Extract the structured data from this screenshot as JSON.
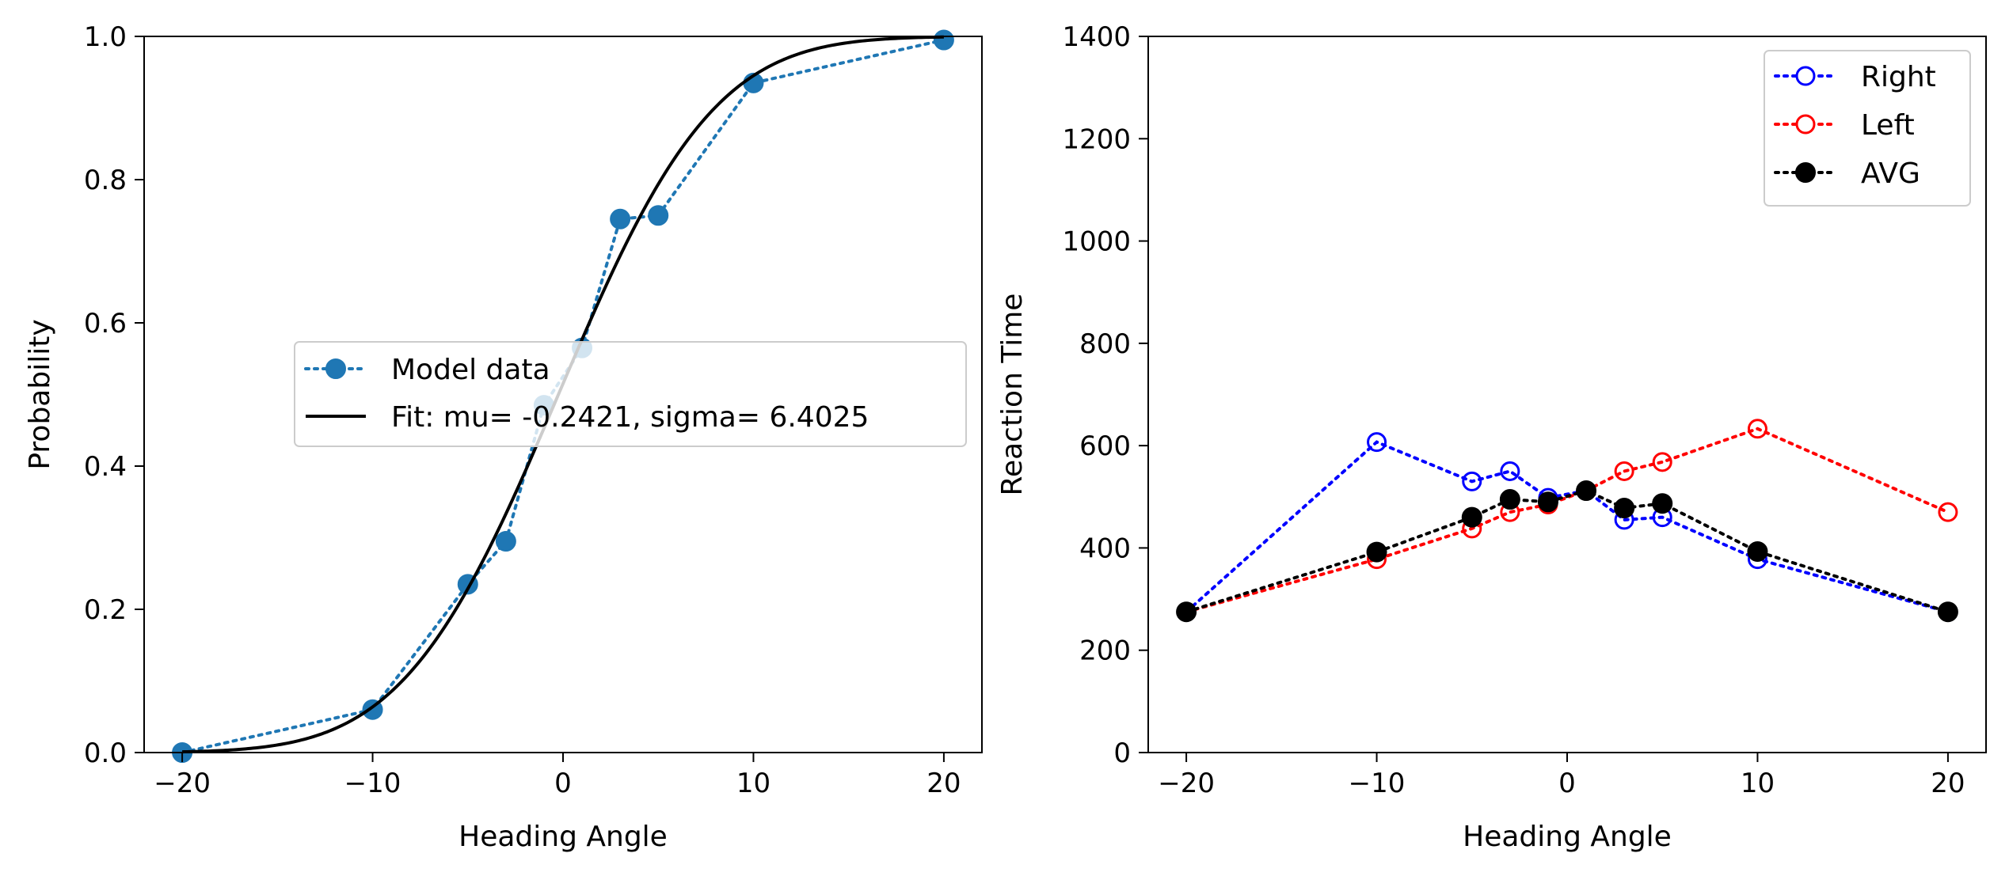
{
  "chart_data": [
    {
      "type": "line",
      "xlabel": "Heading Angle",
      "ylabel": "Probability",
      "xlim": [
        -22,
        22
      ],
      "ylim": [
        0.0,
        1.0
      ],
      "xticks": [
        -20,
        -10,
        0,
        10,
        20
      ],
      "xtick_labels": [
        "−20",
        "−10",
        "0",
        "10",
        "20"
      ],
      "yticks": [
        0.0,
        0.2,
        0.4,
        0.6,
        0.8,
        1.0
      ],
      "ytick_labels": [
        "0.0",
        "0.2",
        "0.4",
        "0.6",
        "0.8",
        "1.0"
      ],
      "grid": false,
      "legend_position": "center-right",
      "series": [
        {
          "name": "Model data",
          "style": "dotted-with-markers",
          "color": "#1f77b4",
          "x": [
            -20,
            -10,
            -5,
            -3,
            -1,
            1,
            3,
            5,
            10,
            20
          ],
          "y": [
            0.0,
            0.06,
            0.235,
            0.295,
            0.485,
            0.565,
            0.745,
            0.75,
            0.935,
            0.995
          ]
        },
        {
          "name": "Fit: mu= -0.2421, sigma= 6.4025",
          "style": "solid",
          "color": "#000000",
          "function": "normal_cdf",
          "mu": -0.2421,
          "sigma": 6.4025
        }
      ]
    },
    {
      "type": "line",
      "xlabel": "Heading Angle",
      "ylabel": "Reaction Time",
      "xlim": [
        -22,
        22
      ],
      "ylim": [
        0,
        1400
      ],
      "xticks": [
        -20,
        -10,
        0,
        10,
        20
      ],
      "xtick_labels": [
        "−20",
        "−10",
        "0",
        "10",
        "20"
      ],
      "yticks": [
        0,
        200,
        400,
        600,
        800,
        1000,
        1200,
        1400
      ],
      "ytick_labels": [
        "0",
        "200",
        "400",
        "600",
        "800",
        "1000",
        "1200",
        "1400"
      ],
      "grid": false,
      "legend_position": "top-right",
      "series": [
        {
          "name": "Right",
          "color": "#0000ff",
          "marker": "open-circle",
          "x": [
            -20,
            -10,
            -5,
            -3,
            -1,
            1,
            3,
            5,
            10,
            20
          ],
          "y": [
            275,
            607,
            530,
            550,
            498,
            512,
            455,
            460,
            378,
            275
          ]
        },
        {
          "name": "Left",
          "color": "#ff0000",
          "marker": "open-circle",
          "x": [
            -20,
            -10,
            -5,
            -3,
            -1,
            1,
            3,
            5,
            10,
            20
          ],
          "y": [
            275,
            378,
            438,
            470,
            485,
            512,
            550,
            568,
            633,
            470
          ]
        },
        {
          "name": "AVG",
          "color": "#000000",
          "marker": "filled-circle",
          "x": [
            -20,
            -10,
            -5,
            -3,
            -1,
            1,
            3,
            5,
            10,
            20
          ],
          "y": [
            275,
            392,
            460,
            495,
            490,
            512,
            478,
            487,
            393,
            275
          ]
        }
      ]
    }
  ]
}
